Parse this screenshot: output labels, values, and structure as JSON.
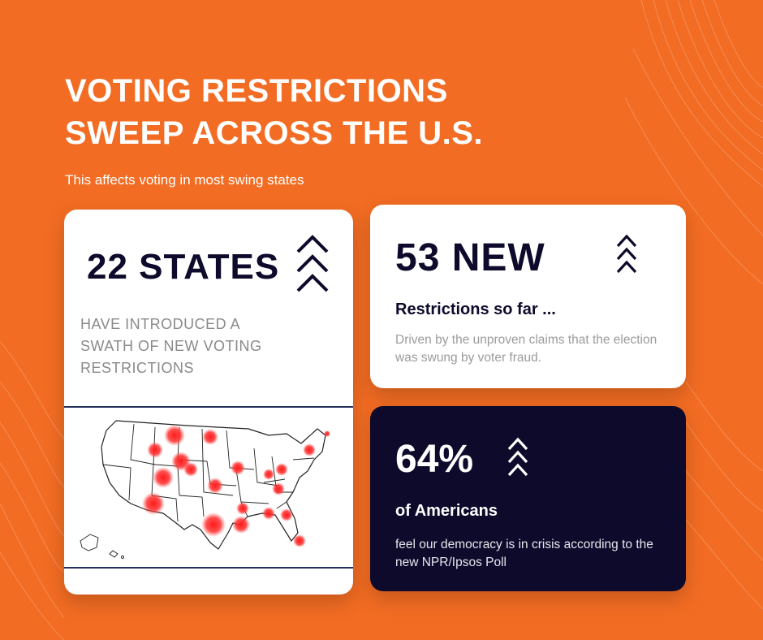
{
  "header": {
    "title_line1": "VOTING RESTRICTIONS",
    "title_line2": "SWEEP ACROSS THE U.S.",
    "subtitle": "This affects voting in most swing states"
  },
  "states_card": {
    "stat": "22 STATES",
    "description": "HAVE INTRODUCED A SWATH OF NEW VOTING RESTRICTIONS",
    "icon": "triple-chevron-up-icon",
    "map_icon": "us-map-icon"
  },
  "restrictions_card": {
    "stat": "53 NEW",
    "heading": "Restrictions so far ...",
    "description": "Driven by the unproven claims that the election was swung by voter fraud.",
    "icon": "triple-chevron-up-icon"
  },
  "americans_card": {
    "stat": "64%",
    "heading": "of Americans",
    "description": "feel our democracy is in crisis according to the new NPR/Ipsos Poll",
    "icon": "triple-chevron-up-icon"
  },
  "colors": {
    "background": "#f26c23",
    "dark_navy": "#0d0a2b",
    "card": "#ffffff",
    "hotspot": "#ff2020"
  }
}
